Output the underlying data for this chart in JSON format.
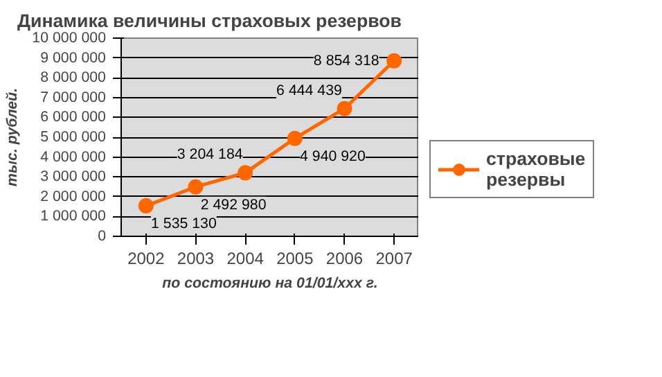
{
  "chart_data": {
    "type": "line",
    "title": "Динамика величины страховых резервов",
    "xlabel": "по состоянию на 01/01/xxx г.",
    "ylabel": "тыс. рублей.",
    "categories": [
      "2002",
      "2003",
      "2004",
      "2005",
      "2006",
      "2007"
    ],
    "series": [
      {
        "name": "страховые резервы",
        "color": "#ff6600",
        "values": [
          1535130,
          2492980,
          3204184,
          4940920,
          6444439,
          8854318
        ],
        "value_labels": [
          "1 535 130",
          "2 492 980",
          "3 204 184",
          "4 940 920",
          "6 444 439",
          "8 854 318"
        ]
      }
    ],
    "ylim": [
      0,
      10000000
    ],
    "yticks": [
      {
        "value": 0,
        "label": "0"
      },
      {
        "value": 1000000,
        "label": "1 000 000"
      },
      {
        "value": 2000000,
        "label": "2 000 000"
      },
      {
        "value": 3000000,
        "label": "3 000 000"
      },
      {
        "value": 4000000,
        "label": "4 000 000"
      },
      {
        "value": 5000000,
        "label": "5 000 000"
      },
      {
        "value": 6000000,
        "label": "6 000 000"
      },
      {
        "value": 7000000,
        "label": "7 000 000"
      },
      {
        "value": 8000000,
        "label": "8 000 000"
      },
      {
        "value": 9000000,
        "label": "9 000 000"
      },
      {
        "value": 10000000,
        "label": "10 000 000"
      }
    ],
    "grid": "y",
    "legend": "right",
    "marker": "circle",
    "line_style": "solid"
  }
}
